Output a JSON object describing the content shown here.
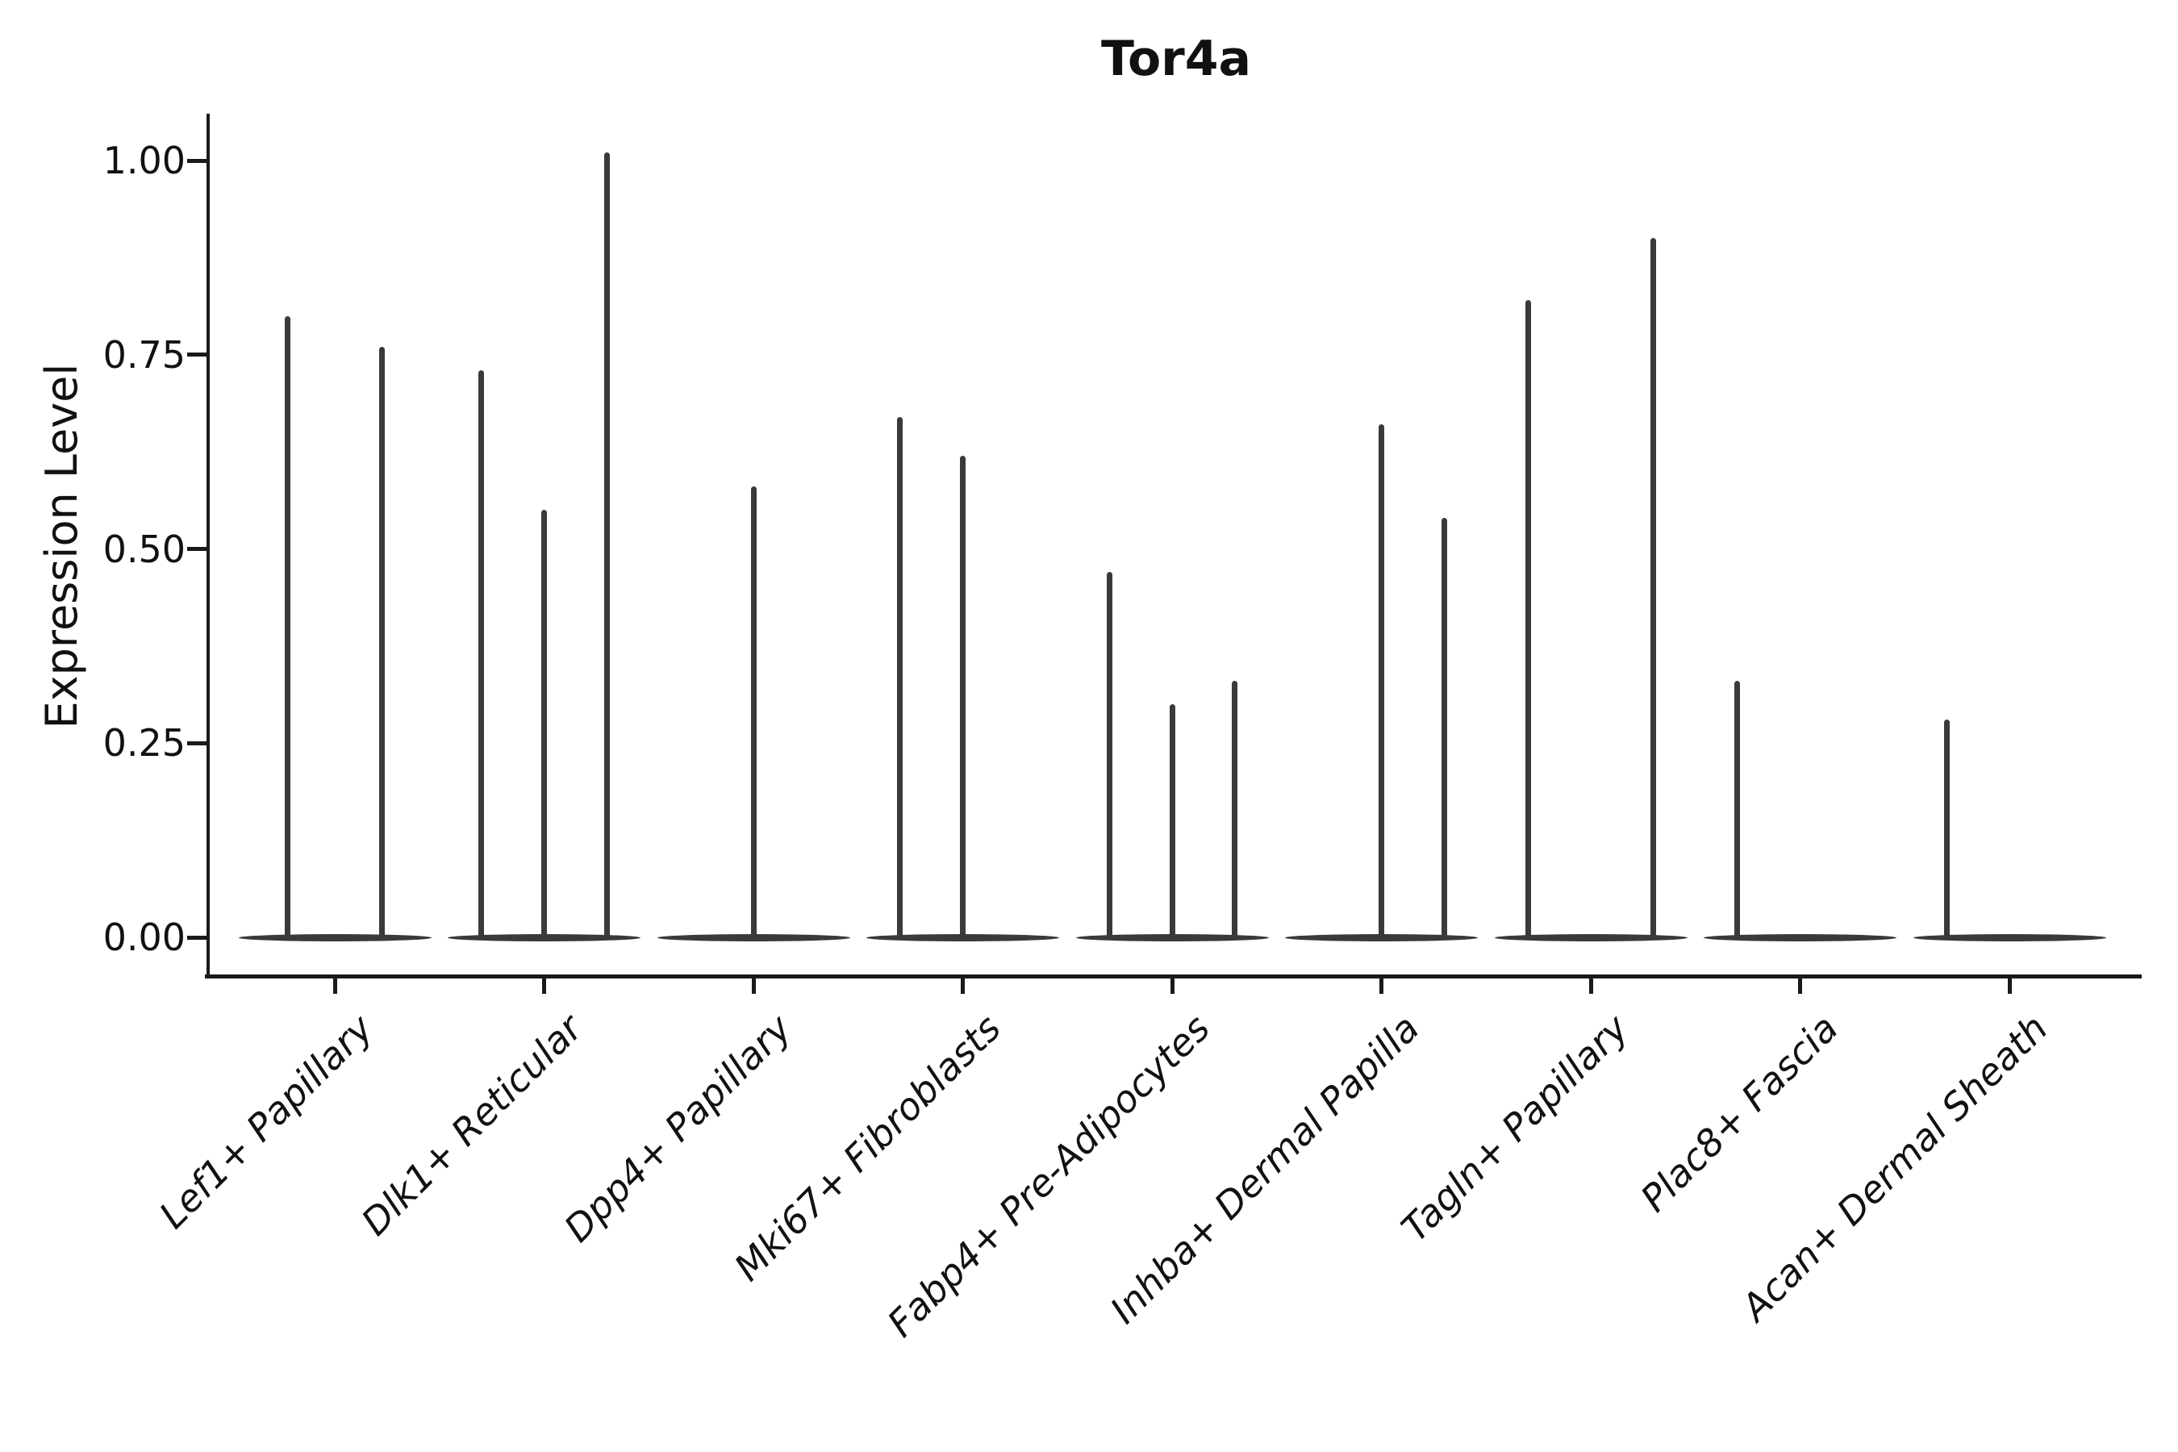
{
  "chart_data": {
    "type": "violin",
    "title": "Tor4a",
    "ylabel": "Expression Level",
    "xlabel": "",
    "grid": false,
    "legend": "none",
    "ylim": [
      -0.05,
      1.06
    ],
    "yticks": [
      0,
      0.25,
      0.5,
      0.75,
      1.0
    ],
    "ytick_labels": [
      "0.00",
      "0.25",
      "0.50",
      "0.75",
      "1.00"
    ],
    "categories": [
      "Lef1+ Papillary",
      "Dlk1+ Reticular",
      "Dpp4+ Papillary",
      "Mki67+ Fibroblasts",
      "Fabp4+ Pre-Adipocytes",
      "Inhba+ Dermal Papilla",
      "Tagln+ Papillary",
      "Plac8+ Fascia",
      "Acan+ Dermal Sheath"
    ],
    "violins": [
      {
        "category": "Lef1+ Papillary",
        "spikes": [
          {
            "pos": -0.225,
            "max": 0.8
          },
          {
            "pos": 0.225,
            "max": 0.76
          }
        ]
      },
      {
        "category": "Dlk1+ Reticular",
        "spikes": [
          {
            "pos": -0.3,
            "max": 0.73
          },
          {
            "pos": 0.0,
            "max": 0.55
          },
          {
            "pos": 0.3,
            "max": 1.01
          }
        ]
      },
      {
        "category": "Dpp4+ Papillary",
        "spikes": [
          {
            "pos": 0.0,
            "max": 0.58
          }
        ]
      },
      {
        "category": "Mki67+ Fibroblasts",
        "spikes": [
          {
            "pos": -0.3,
            "max": 0.67
          },
          {
            "pos": 0.0,
            "max": 0.62
          }
        ]
      },
      {
        "category": "Fabp4+ Pre-Adipocytes",
        "spikes": [
          {
            "pos": -0.3,
            "max": 0.47
          },
          {
            "pos": 0.0,
            "max": 0.3
          },
          {
            "pos": 0.3,
            "max": 0.33
          }
        ]
      },
      {
        "category": "Inhba+ Dermal Papilla",
        "spikes": [
          {
            "pos": 0.0,
            "max": 0.66
          },
          {
            "pos": 0.3,
            "max": 0.54
          }
        ]
      },
      {
        "category": "Tagln+ Papillary",
        "spikes": [
          {
            "pos": -0.3,
            "max": 0.82
          },
          {
            "pos": 0.3,
            "max": 0.9
          }
        ]
      },
      {
        "category": "Plac8+ Fascia",
        "spikes": [
          {
            "pos": -0.3,
            "max": 0.33
          }
        ]
      },
      {
        "category": "Acan+ Dermal Sheath",
        "spikes": [
          {
            "pos": -0.3,
            "max": 0.28
          }
        ]
      }
    ],
    "colors": {
      "violin": "#3a3a3a",
      "axis": "#1a1a1a",
      "text": "#111111",
      "background": "#ffffff"
    }
  }
}
